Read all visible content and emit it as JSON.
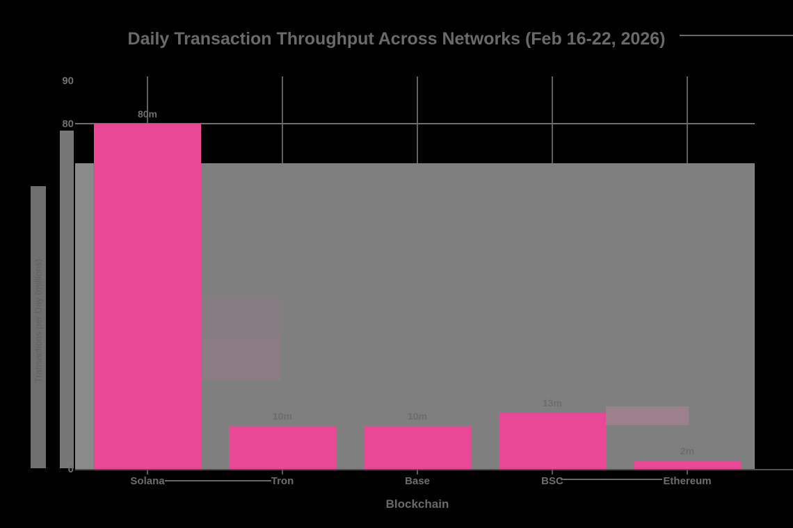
{
  "page": {
    "background_color": "#000000",
    "text_color": "#6a6a6a"
  },
  "chart_data": {
    "type": "bar",
    "title": "Daily Transaction Throughput Across Networks (Feb 16-22, 2026)",
    "xlabel": "Blockchain",
    "ylabel": "Transactions per Day (millions)",
    "categories": [
      "Solana",
      "Tron",
      "Base",
      "BSC",
      "Ethereum"
    ],
    "values": [
      80,
      10,
      10,
      13,
      2
    ],
    "bar_labels": [
      "80m",
      "10m",
      "10m",
      "13m",
      "2m"
    ],
    "ylim": [
      0,
      90
    ],
    "ytick_interval": 10,
    "visible_yticks": [
      90,
      80,
      0
    ],
    "legend": "none",
    "grid": true,
    "colors": {
      "bar": "#e84896",
      "text": "#6a6a6a",
      "gridline": "#5e5e5e",
      "plot_smear_gray": "#7f7f7f"
    }
  }
}
